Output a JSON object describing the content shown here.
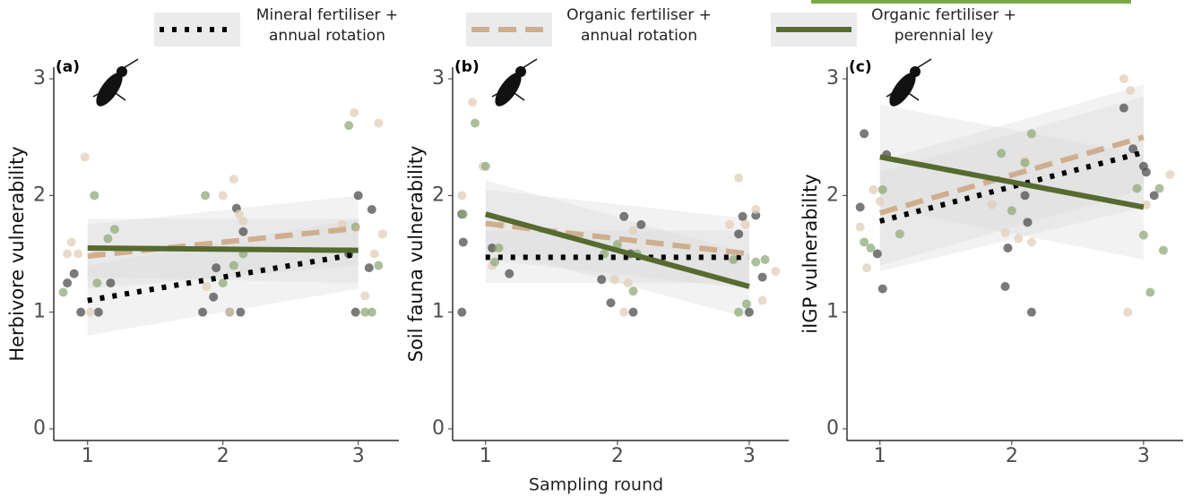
{
  "legend": [
    {
      "name": "Mineral fertiliser + annual rotation",
      "color": "#000000",
      "linestyle": "dotted"
    },
    {
      "name": "Organic fertiliser + annual rotation",
      "color": "#cfae8f",
      "linestyle": "dashed"
    },
    {
      "name": "Organic fertiliser + perennial ley",
      "color": "#556b2f",
      "linestyle": "solid"
    }
  ],
  "x_label": "Sampling round",
  "chart_data": [
    {
      "type": "scatter",
      "panel_label": "(a)",
      "y_label": "Herbivore vulnerability",
      "xlim": [
        0.75,
        3.3
      ],
      "ylim": [
        -0.1,
        3.1
      ],
      "xticks": [
        1,
        2,
        3
      ],
      "yticks": [
        0,
        1,
        2,
        3
      ],
      "series": [
        {
          "group": 0,
          "color": "#4d4d4d",
          "x": [
            0.85,
            0.9,
            0.95,
            1.08,
            1.17,
            1.85,
            1.93,
            1.95,
            2.05,
            2.1,
            2.13,
            2.15,
            2.93,
            3.0,
            3.1,
            3.08,
            2.98
          ],
          "values": [
            1.25,
            1.33,
            1.0,
            1.0,
            1.25,
            1.0,
            1.13,
            1.38,
            1.0,
            1.89,
            1.0,
            1.69,
            1.5,
            2.0,
            1.88,
            1.38,
            1.0
          ]
        },
        {
          "group": 1,
          "color": "#e3cdb9",
          "x": [
            0.85,
            0.88,
            0.93,
            0.98,
            1.02,
            1.06,
            2.0,
            2.08,
            2.12,
            2.15,
            2.05,
            1.88,
            2.88,
            2.97,
            3.15,
            3.18,
            3.05,
            3.12
          ],
          "values": [
            1.5,
            1.6,
            1.5,
            2.33,
            1.0,
            1.5,
            2.0,
            2.14,
            1.84,
            1.78,
            1.0,
            1.22,
            1.75,
            2.71,
            2.62,
            1.67,
            1.14,
            1.5
          ]
        },
        {
          "group": 2,
          "color": "#8fa97a",
          "x": [
            0.82,
            1.05,
            1.15,
            1.2,
            1.07,
            1.87,
            2.08,
            2.0,
            2.15,
            2.93,
            2.98,
            3.05,
            3.1,
            3.15
          ],
          "values": [
            1.17,
            2.0,
            1.63,
            1.71,
            1.25,
            2.0,
            1.4,
            1.25,
            1.5,
            2.6,
            1.73,
            1.0,
            1.0,
            1.4
          ]
        }
      ],
      "trends": [
        {
          "group": 0,
          "x": [
            1,
            3
          ],
          "values": [
            1.1,
            1.5
          ],
          "lower": [
            0.8,
            1.2
          ],
          "upper": [
            1.4,
            1.8
          ]
        },
        {
          "group": 1,
          "x": [
            1,
            3
          ],
          "values": [
            1.48,
            1.72
          ],
          "lower": [
            1.2,
            1.4
          ],
          "upper": [
            1.75,
            2.0
          ]
        },
        {
          "group": 2,
          "x": [
            1,
            3
          ],
          "values": [
            1.55,
            1.53
          ],
          "lower": [
            1.3,
            1.25
          ],
          "upper": [
            1.8,
            1.8
          ]
        }
      ]
    },
    {
      "type": "scatter",
      "panel_label": "(b)",
      "y_label": "Soil fauna vulnerability",
      "xlim": [
        0.75,
        3.3
      ],
      "ylim": [
        -0.1,
        3.1
      ],
      "xticks": [
        1,
        2,
        3
      ],
      "yticks": [
        0,
        1,
        2,
        3
      ],
      "series": [
        {
          "group": 0,
          "color": "#4d4d4d",
          "x": [
            0.82,
            0.83,
            0.82,
            1.05,
            1.18,
            1.88,
            1.95,
            2.05,
            2.1,
            2.12,
            2.18,
            2.92,
            2.95,
            3.0,
            3.05,
            3.1
          ],
          "values": [
            1.84,
            1.6,
            1.0,
            1.55,
            1.33,
            1.28,
            1.08,
            1.82,
            1.5,
            1.0,
            1.75,
            1.67,
            1.82,
            1.0,
            1.83,
            1.3
          ]
        },
        {
          "group": 1,
          "color": "#e3cdb9",
          "x": [
            0.82,
            0.9,
            0.98,
            1.05,
            1.12,
            1.98,
            2.05,
            2.08,
            2.12,
            2.85,
            2.92,
            2.97,
            3.05,
            3.1,
            3.2
          ],
          "values": [
            2.0,
            2.8,
            2.25,
            1.4,
            1.75,
            1.28,
            1.0,
            1.25,
            1.7,
            1.75,
            2.15,
            1.75,
            1.88,
            1.1,
            1.35
          ]
        },
        {
          "group": 2,
          "color": "#8fa97a",
          "x": [
            0.83,
            0.92,
            1.0,
            1.07,
            1.1,
            1.9,
            2.0,
            2.12,
            2.15,
            2.88,
            2.92,
            2.98,
            3.05,
            3.12
          ],
          "values": [
            1.84,
            2.62,
            2.25,
            1.43,
            1.55,
            1.5,
            1.58,
            1.18,
            1.5,
            1.45,
            1.0,
            1.07,
            1.43,
            1.45
          ]
        }
      ],
      "trends": [
        {
          "group": 0,
          "x": [
            1,
            3
          ],
          "values": [
            1.47,
            1.47
          ],
          "lower": [
            1.25,
            1.25
          ],
          "upper": [
            1.7,
            1.7
          ]
        },
        {
          "group": 1,
          "x": [
            1,
            3
          ],
          "values": [
            1.76,
            1.5
          ],
          "lower": [
            1.45,
            1.2
          ],
          "upper": [
            2.05,
            1.8
          ]
        },
        {
          "group": 2,
          "x": [
            1,
            3
          ],
          "values": [
            1.84,
            1.22
          ],
          "lower": [
            1.55,
            0.95
          ],
          "upper": [
            2.13,
            1.5
          ]
        }
      ]
    },
    {
      "type": "scatter",
      "panel_label": "(c)",
      "y_label": "iIGP vulnerability",
      "xlim": [
        0.75,
        3.3
      ],
      "ylim": [
        -0.1,
        3.1
      ],
      "xticks": [
        1,
        2,
        3
      ],
      "yticks": [
        0,
        1,
        2,
        3
      ],
      "series": [
        {
          "group": 0,
          "color": "#4d4d4d",
          "x": [
            0.85,
            0.88,
            0.98,
            1.02,
            1.05,
            1.95,
            1.97,
            2.12,
            2.15,
            2.1,
            2.85,
            2.92,
            3.0,
            3.02,
            3.08
          ],
          "values": [
            1.9,
            2.53,
            1.5,
            1.2,
            2.35,
            1.22,
            1.55,
            1.77,
            1.0,
            2.0,
            2.75,
            2.4,
            2.25,
            2.2,
            2.0
          ]
        },
        {
          "group": 1,
          "color": "#e3cdb9",
          "x": [
            0.85,
            0.9,
            0.95,
            1.0,
            1.85,
            1.95,
            2.05,
            2.1,
            2.15,
            2.85,
            2.9,
            2.88,
            3.02,
            3.2
          ],
          "values": [
            1.73,
            1.38,
            2.05,
            1.95,
            1.92,
            1.68,
            1.63,
            2.3,
            1.6,
            3.0,
            2.9,
            1.0,
            1.92,
            2.18
          ]
        },
        {
          "group": 2,
          "color": "#8fa97a",
          "x": [
            0.88,
            0.93,
            1.02,
            1.1,
            1.15,
            1.92,
            2.0,
            2.1,
            2.15,
            2.95,
            3.0,
            3.05,
            3.12,
            3.15
          ],
          "values": [
            1.6,
            1.55,
            2.05,
            2.85,
            1.67,
            2.36,
            1.87,
            2.28,
            2.53,
            2.06,
            1.66,
            1.17,
            2.06,
            1.53
          ]
        }
      ],
      "trends": [
        {
          "group": 0,
          "x": [
            1,
            3
          ],
          "values": [
            1.78,
            2.37
          ],
          "lower": [
            1.35,
            1.9
          ],
          "upper": [
            2.2,
            2.85
          ]
        },
        {
          "group": 1,
          "x": [
            1,
            3
          ],
          "values": [
            1.85,
            2.5
          ],
          "lower": [
            1.4,
            2.05
          ],
          "upper": [
            2.3,
            2.95
          ]
        },
        {
          "group": 2,
          "x": [
            1,
            3
          ],
          "values": [
            2.33,
            1.9
          ],
          "lower": [
            1.9,
            1.45
          ],
          "upper": [
            2.78,
            2.35
          ]
        }
      ]
    }
  ]
}
